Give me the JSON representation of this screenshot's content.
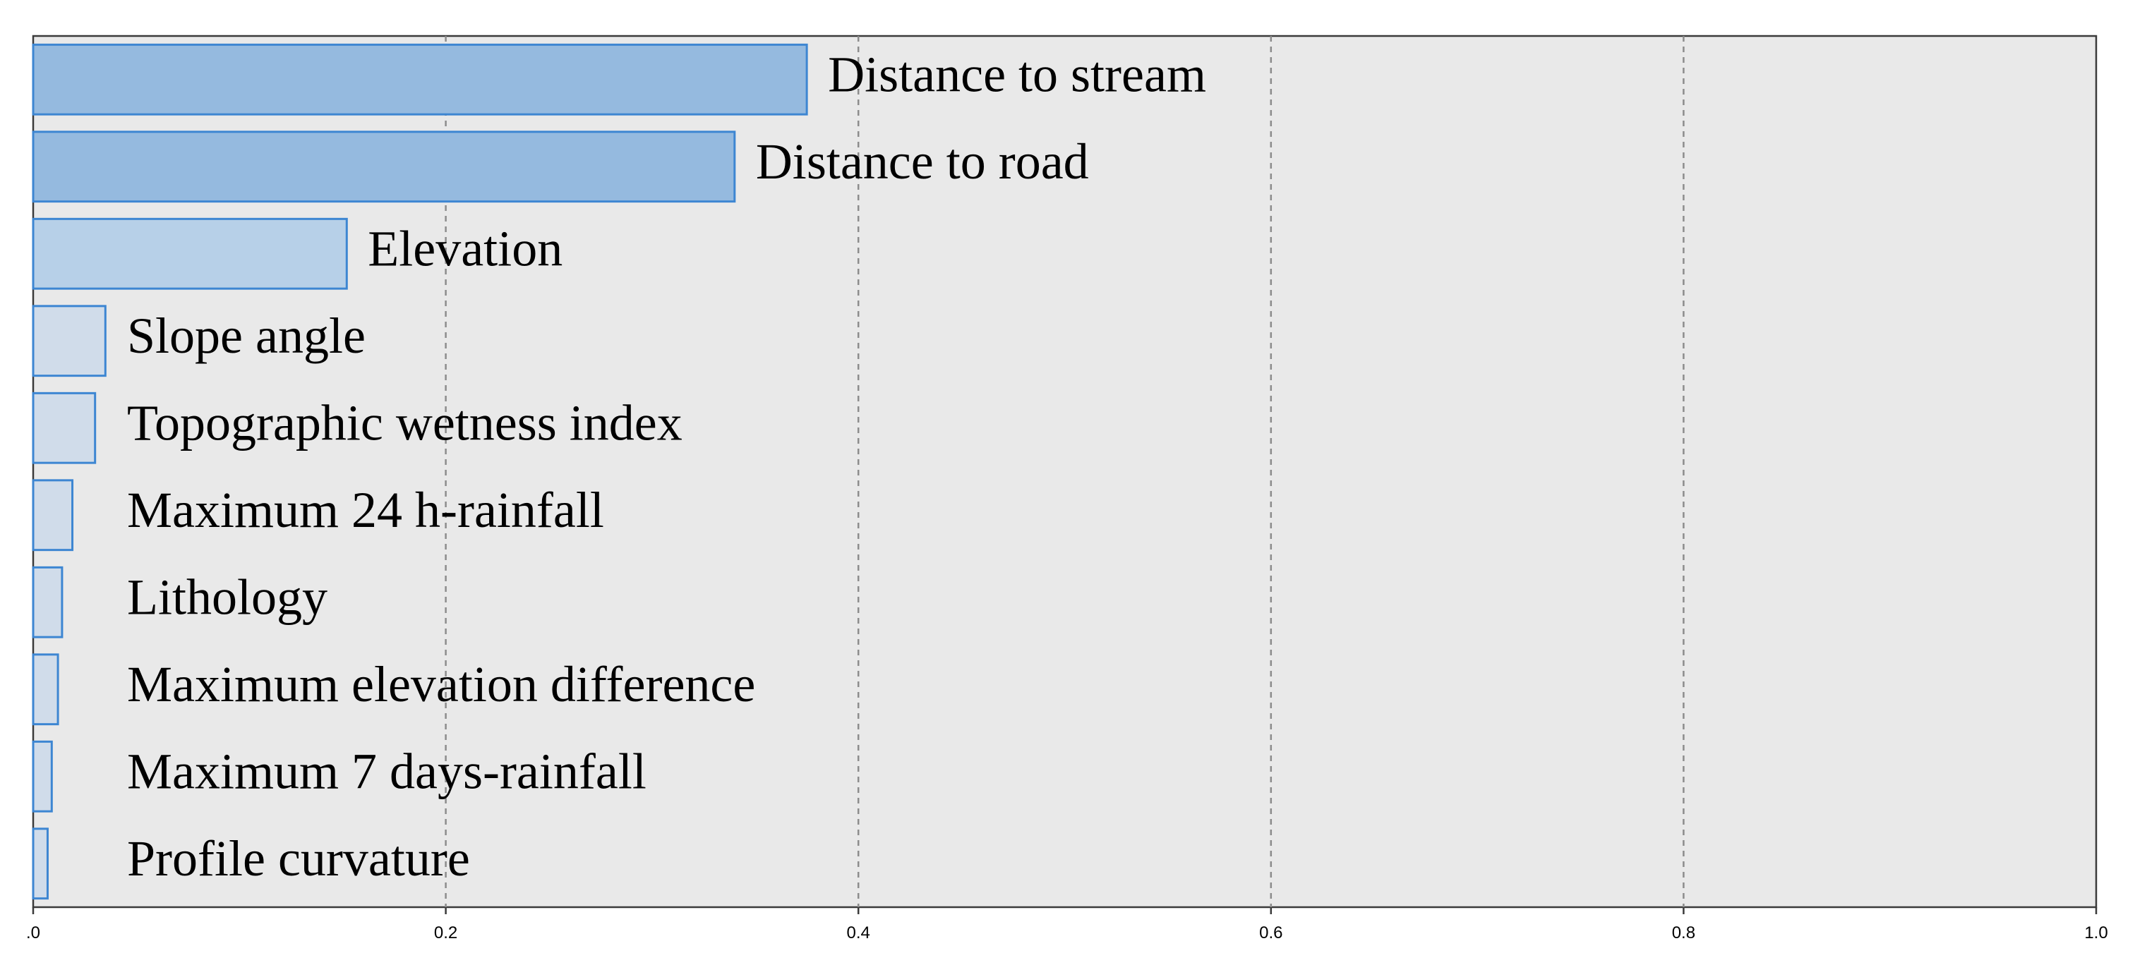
{
  "chart_data": {
    "type": "bar",
    "orientation": "horizontal",
    "title": "",
    "xlabel": "",
    "ylabel": "",
    "xlim": [
      0,
      1.0
    ],
    "grid": true,
    "categories": [
      "Distance to stream",
      "Distance to road",
      "Elevation",
      "Slope angle",
      "Topographic wetness index",
      "Maximum 24 h-rainfall",
      "Lithology",
      "Maximum elevation difference",
      "Maximum 7 days-rainfall",
      "Profile curvature"
    ],
    "values": [
      0.375,
      0.34,
      0.152,
      0.035,
      0.03,
      0.019,
      0.014,
      0.012,
      0.009,
      0.007
    ],
    "bar_colors": [
      "#95badf",
      "#95badf",
      "#b7d0e8",
      "#d0dcea",
      "#d0dcea",
      "#d0dcea",
      "#d0dcea",
      "#d0dcea",
      "#d0dcea",
      "#d0dcea"
    ],
    "bar_stroke": "#3d86d2",
    "plot_background": "#e9e9e9",
    "x_ticks": [
      {
        "value": 0,
        "label": ".0"
      },
      {
        "value": 0.2,
        "label": "0.2"
      },
      {
        "value": 0.4,
        "label": "0.4"
      },
      {
        "value": 0.6,
        "label": "0.6"
      },
      {
        "value": 0.8,
        "label": "0.8"
      },
      {
        "value": 1.0,
        "label": "1.0"
      }
    ]
  }
}
